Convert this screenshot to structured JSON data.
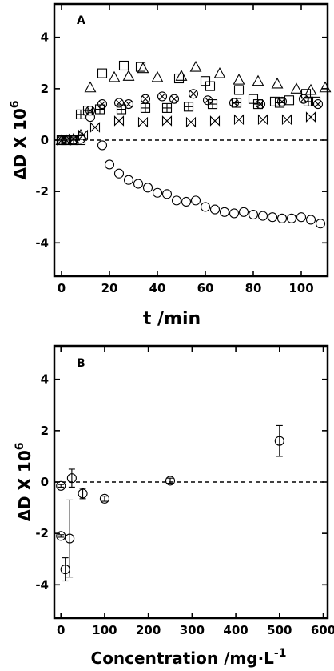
{
  "chart_data": [
    {
      "type": "scatter",
      "panel_label": "A",
      "xlabel": "t /min",
      "ylabel_main": "ΔD X 10",
      "ylabel_exp": "6",
      "xlim": [
        -3,
        111
      ],
      "ylim": [
        -5.3,
        5.3
      ],
      "xticks": [
        "0",
        "20",
        "40",
        "60",
        "80",
        "100"
      ],
      "xtick_values": [
        0,
        20,
        40,
        60,
        80,
        100
      ],
      "yticks": [
        "-4",
        "-2",
        "0",
        "2",
        "4"
      ],
      "ytick_values": [
        -4,
        -2,
        0,
        2,
        4
      ],
      "reference_line": 0,
      "grid": false,
      "series": [
        {
          "marker": "circle",
          "x": [
            0,
            2,
            5,
            8,
            12,
            17,
            20,
            24,
            28,
            32,
            36,
            40,
            44,
            48,
            52,
            56,
            60,
            64,
            68,
            72,
            76,
            80,
            84,
            88,
            92,
            96,
            100,
            104,
            108
          ],
          "y": [
            0,
            0,
            0,
            0.05,
            0.9,
            -0.2,
            -0.95,
            -1.3,
            -1.55,
            -1.7,
            -1.85,
            -2.05,
            -2.1,
            -2.35,
            -2.4,
            -2.35,
            -2.6,
            -2.7,
            -2.8,
            -2.85,
            -2.8,
            -2.9,
            -2.95,
            -3.0,
            -3.05,
            -3.05,
            -3.0,
            -3.1,
            -3.25
          ]
        },
        {
          "marker": "triangle",
          "x": [
            0,
            2,
            5,
            8,
            12,
            22,
            28,
            34,
            40,
            50,
            56,
            66,
            74,
            82,
            90,
            98,
            104,
            110
          ],
          "y": [
            0,
            0,
            0.05,
            0.2,
            2.05,
            2.45,
            2.5,
            2.8,
            2.45,
            2.5,
            2.85,
            2.6,
            2.35,
            2.3,
            2.2,
            2.0,
            1.95,
            2.05
          ]
        },
        {
          "marker": "square",
          "x": [
            0,
            2,
            5,
            8,
            17,
            26,
            33,
            49,
            60,
            62,
            74,
            80,
            89,
            95,
            102,
            106
          ],
          "y": [
            0,
            0,
            0,
            0,
            2.6,
            2.9,
            2.85,
            2.4,
            2.3,
            2.1,
            1.95,
            1.6,
            1.5,
            1.55,
            1.8,
            1.5
          ]
        },
        {
          "marker": "boxed-plus",
          "x": [
            0,
            2,
            5,
            8,
            11,
            16,
            25,
            35,
            44,
            53,
            63,
            73,
            82,
            91,
            103
          ],
          "y": [
            0,
            0,
            0,
            1.0,
            1.15,
            1.2,
            1.2,
            1.25,
            1.25,
            1.3,
            1.4,
            1.45,
            1.4,
            1.45,
            1.5
          ]
        },
        {
          "marker": "circle-x",
          "x": [
            12,
            17,
            24,
            28,
            35,
            42,
            47,
            55,
            61,
            72,
            83,
            92,
            101,
            107
          ],
          "y": [
            1.15,
            1.4,
            1.45,
            1.4,
            1.6,
            1.7,
            1.6,
            1.8,
            1.55,
            1.45,
            1.4,
            1.5,
            1.6,
            1.4
          ]
        },
        {
          "marker": "bowtie",
          "x": [
            0,
            2,
            5,
            9,
            14,
            24,
            34,
            44,
            54,
            64,
            74,
            84,
            94,
            104
          ],
          "y": [
            0,
            0,
            0.05,
            0.2,
            0.5,
            0.75,
            0.7,
            0.75,
            0.7,
            0.75,
            0.8,
            0.8,
            0.8,
            0.9
          ]
        }
      ]
    },
    {
      "type": "scatter",
      "panel_label": "B",
      "xlabel_main": "Concentration /mg·L",
      "xlabel_exp": "-1",
      "ylabel_main": "ΔD X 10",
      "ylabel_exp": "6",
      "xlim": [
        -15,
        610
      ],
      "ylim": [
        -5.3,
        5.3
      ],
      "xticks": [
        "0",
        "100",
        "200",
        "300",
        "400",
        "500",
        "600"
      ],
      "xtick_values": [
        0,
        100,
        200,
        300,
        400,
        500,
        600
      ],
      "yticks": [
        "-4",
        "-2",
        "0",
        "2",
        "4"
      ],
      "ytick_values": [
        -4,
        -2,
        0,
        2,
        4
      ],
      "reference_line": 0,
      "grid": false,
      "series": [
        {
          "marker": "circle",
          "x": [
            0,
            0,
            10,
            20,
            25,
            50,
            100,
            250,
            500
          ],
          "y": [
            -0.15,
            -2.1,
            -3.4,
            -2.2,
            0.15,
            -0.45,
            -0.65,
            0.05,
            1.6
          ],
          "yerr": [
            0.05,
            0.05,
            0.45,
            1.5,
            0.35,
            0.2,
            0.1,
            0.1,
            0.6
          ]
        }
      ]
    }
  ]
}
